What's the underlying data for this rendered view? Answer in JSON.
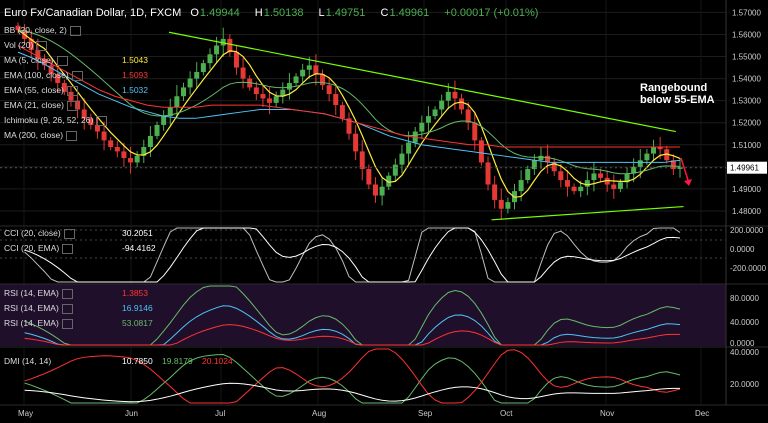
{
  "header": {
    "symbol": "Euro Fx/Canadian Dollar, 1D, FXCM",
    "open_label": "O",
    "open": "1.49944",
    "high_label": "H",
    "high": "1.50138",
    "low_label": "L",
    "low": "1.49751",
    "close_label": "C",
    "close": "1.49961",
    "change": "+0.00017 (+0.01%)"
  },
  "indicators": [
    {
      "label": "BB (20, close, 2)",
      "value": "",
      "color": "#aaaaaa"
    },
    {
      "label": "Vol (20)",
      "value": "",
      "color": "#aaaaaa"
    },
    {
      "label": "MA (5, close)",
      "value": "1.5043",
      "color": "#ffeb3b"
    },
    {
      "label": "EMA (100, close)",
      "value": "1.5093",
      "color": "#ff3333"
    },
    {
      "label": "EMA (55, close)",
      "value": "1.5032",
      "color": "#4fc3f7"
    },
    {
      "label": "EMA (21, close)",
      "value": "",
      "color": "#66bb6a"
    },
    {
      "label": "Ichimoku (9, 26, 52, 26)",
      "value": "",
      "color": "#aaaaaa"
    },
    {
      "label": "MA (200, close)",
      "value": "",
      "color": "#aaaaaa"
    }
  ],
  "annotation": {
    "line1": "Rangebound",
    "line2": "below 55-EMA"
  },
  "current_price": "1.49961",
  "cci_panel": {
    "rows": [
      {
        "label": "CCI (20, close)",
        "value": "30.2051",
        "color": "#ffffff"
      },
      {
        "label": "CCI (20, EMA)",
        "value": "-94.4162",
        "color": "#ffffff"
      }
    ],
    "axis": [
      "200.0000",
      "0.0000",
      "-200.0000"
    ]
  },
  "rsi_panel": {
    "rows": [
      {
        "label": "RSI (14, EMA)",
        "value": "1.3853",
        "color": "#ff3333"
      },
      {
        "label": "RSI (14, EMA)",
        "value": "16.9146",
        "color": "#4fc3f7"
      },
      {
        "label": "RSI (14, EMA)",
        "value": "53.0817",
        "color": "#66bb6a"
      }
    ],
    "axis": [
      "80.0000",
      "40.0000",
      "0.0000"
    ]
  },
  "dmi_panel": {
    "label": "DMI (14, 14)",
    "values": [
      {
        "value": "10.7850",
        "color": "#ffffff"
      },
      {
        "value": "19.8179",
        "color": "#66bb6a"
      },
      {
        "value": "20.1024",
        "color": "#ff3333"
      }
    ],
    "axis": [
      "40.0000",
      "20.0000"
    ]
  },
  "chart_data": {
    "type": "candlestick",
    "price_axis": [
      "1.57000",
      "1.56000",
      "1.55000",
      "1.54000",
      "1.53000",
      "1.52000",
      "1.51000",
      "1.50000",
      "1.49000",
      "1.48000"
    ],
    "ylim": [
      1.475,
      1.572
    ],
    "months": [
      "May",
      "Jun",
      "Jul",
      "Aug",
      "Sep",
      "Oct",
      "Nov",
      "Dec"
    ],
    "close_series": [
      1.562,
      1.558,
      1.553,
      1.549,
      1.546,
      1.542,
      1.538,
      1.534,
      1.53,
      1.526,
      1.522,
      1.519,
      1.516,
      1.512,
      1.509,
      1.507,
      1.504,
      1.502,
      1.505,
      1.509,
      1.514,
      1.519,
      1.523,
      1.527,
      1.532,
      1.536,
      1.54,
      1.543,
      1.547,
      1.551,
      1.555,
      1.558,
      1.552,
      1.545,
      1.54,
      1.536,
      1.533,
      1.531,
      1.529,
      1.532,
      1.535,
      1.538,
      1.541,
      1.544,
      1.546,
      1.542,
      1.537,
      1.533,
      1.528,
      1.522,
      1.515,
      1.507,
      1.499,
      1.492,
      1.487,
      1.491,
      1.496,
      1.501,
      1.506,
      1.511,
      1.516,
      1.52,
      1.523,
      1.526,
      1.53,
      1.534,
      1.531,
      1.526,
      1.52,
      1.512,
      1.502,
      1.492,
      1.485,
      1.481,
      1.484,
      1.489,
      1.494,
      1.499,
      1.503,
      1.505,
      1.502,
      1.498,
      1.494,
      1.491,
      1.489,
      1.491,
      1.494,
      1.497,
      1.495,
      1.492,
      1.49,
      1.493,
      1.497,
      1.5,
      1.503,
      1.506,
      1.509,
      1.508,
      1.503,
      1.499,
      1.5
    ],
    "ema55": [
      1.552,
      1.549,
      1.545,
      1.541,
      1.537,
      1.533,
      1.53,
      1.527,
      1.525,
      1.523,
      1.522,
      1.522,
      1.523,
      1.524,
      1.525,
      1.526,
      1.526,
      1.526,
      1.525,
      1.524,
      1.522,
      1.52,
      1.517,
      1.514,
      1.512,
      1.51,
      1.509,
      1.508,
      1.507,
      1.506,
      1.505,
      1.504,
      1.503,
      1.502,
      1.502,
      1.502,
      1.502,
      1.502,
      1.502,
      1.502,
      1.502,
      1.503
    ],
    "ema100": [
      1.555,
      1.551,
      1.547,
      1.543,
      1.539,
      1.535,
      1.532,
      1.53,
      1.528,
      1.527,
      1.527,
      1.527,
      1.528,
      1.528,
      1.528,
      1.528,
      1.527,
      1.526,
      1.525,
      1.524,
      1.522,
      1.52,
      1.518,
      1.516,
      1.514,
      1.513,
      1.512,
      1.511,
      1.51,
      1.51,
      1.509,
      1.509,
      1.509,
      1.509,
      1.509,
      1.509,
      1.509,
      1.509,
      1.509,
      1.509,
      1.509,
      1.509
    ],
    "resistance_line": {
      "from": [
        0.22,
        1.561
      ],
      "to": [
        0.88,
        1.516
      ]
    },
    "support_line": {
      "from": [
        0.64,
        1.476
      ],
      "to": [
        0.89,
        1.482
      ]
    }
  }
}
